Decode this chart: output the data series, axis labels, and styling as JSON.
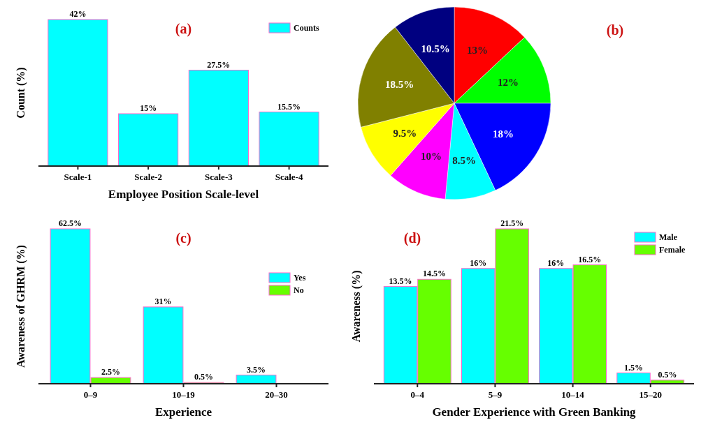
{
  "chart_data": [
    {
      "type": "bar",
      "title": "(a)",
      "xlabel": "Employee Position Scale-level",
      "ylabel": "Count (%)",
      "categories": [
        "Scale-1",
        "Scale-2",
        "Scale-3",
        "Scale-4"
      ],
      "legend": "top right",
      "series": [
        {
          "name": "Counts",
          "color": "#00ffff",
          "values": [
            42,
            15,
            27.5,
            15.5
          ],
          "value_labels": [
            "42%",
            "15%",
            "27.5%",
            "15.5%"
          ]
        }
      ]
    },
    {
      "type": "pie",
      "title": "(b)",
      "categories": [
        null,
        null,
        null,
        null,
        null,
        null,
        null,
        null
      ],
      "values": [
        13,
        12,
        18,
        8.5,
        10,
        9.5,
        18.5,
        10.5
      ],
      "colors": [
        "#ff0000",
        "#00ff00",
        "#0000ff",
        "#00ffff",
        "#ff00ff",
        "#ffff00",
        "#808000",
        "#000080"
      ],
      "value_labels": [
        "13%",
        "12%",
        "18%",
        "8.5%",
        "10%",
        "9.5%",
        "18.5%",
        "10.5%"
      ]
    },
    {
      "type": "bar",
      "title": "(c)",
      "xlabel": "Experience",
      "ylabel": "Awareness of GHRM (%)",
      "categories": [
        "0–9",
        "10–19",
        "20–30"
      ],
      "legend": "right",
      "series": [
        {
          "name": "Yes",
          "color": "#00ffff",
          "values": [
            62.5,
            31,
            3.5
          ],
          "value_labels": [
            "62.5%",
            "31%",
            "3.5%"
          ]
        },
        {
          "name": "No",
          "color": "#66ff00",
          "values": [
            2.5,
            0.5,
            null
          ],
          "value_labels": [
            "2.5%",
            "0.5%",
            null
          ]
        }
      ]
    },
    {
      "type": "bar",
      "title": "(d)",
      "xlabel": "Gender Experience with Green Banking",
      "ylabel": "Awareness (%)",
      "categories": [
        "0–4",
        "5–9",
        "10–14",
        "15–20"
      ],
      "legend": "top right",
      "series": [
        {
          "name": "Male",
          "color": "#00ffff",
          "values": [
            13.5,
            16,
            16,
            1.5
          ],
          "value_labels": [
            "13.5%",
            "16%",
            "16%",
            "1.5%"
          ]
        },
        {
          "name": "Female",
          "color": "#66ff00",
          "values": [
            14.5,
            21.5,
            16.5,
            0.5
          ],
          "value_labels": [
            "14.5%",
            "21.5%",
            "16.5%",
            "0.5%"
          ]
        }
      ]
    }
  ]
}
